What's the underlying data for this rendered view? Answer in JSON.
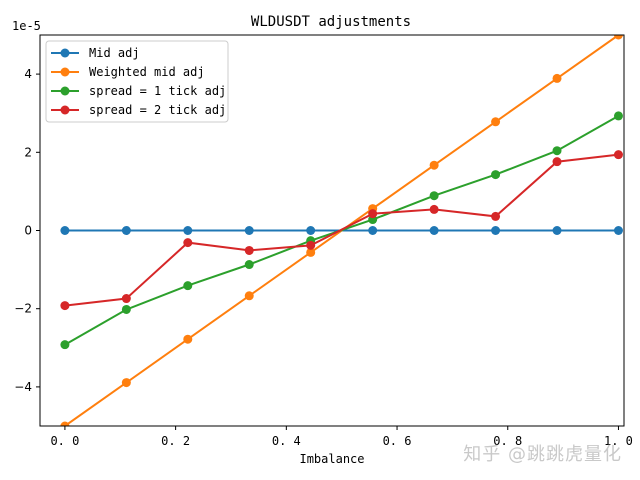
{
  "chart_data": {
    "type": "line",
    "title": "WLDUSDT adjustments",
    "xlabel": "Imbalance",
    "ylabel": "",
    "y_scale_label": "1e-5",
    "xlim": [
      -0.045,
      1.01
    ],
    "ylim": [
      -5.0,
      5.0
    ],
    "x_ticks": [
      "0.0",
      "0.2",
      "0.4",
      "0.6",
      "0.8",
      "1.0"
    ],
    "y_ticks": [
      "-4",
      "-2",
      "0",
      "2",
      "4"
    ],
    "grid": false,
    "legend_position": "upper left",
    "x": [
      0.0,
      0.111,
      0.222,
      0.333,
      0.444,
      0.556,
      0.667,
      0.778,
      0.889,
      1.0
    ],
    "series": [
      {
        "name": "Mid adj",
        "color": "#1f77b4",
        "values": [
          0,
          0,
          0,
          0,
          0,
          0,
          0,
          0,
          0,
          0
        ]
      },
      {
        "name": "Weighted mid adj",
        "color": "#ff7f0e",
        "values": [
          -5.0,
          -3.89,
          -2.78,
          -1.67,
          -0.56,
          0.56,
          1.67,
          2.78,
          3.89,
          5.0
        ]
      },
      {
        "name": "spread = 1 tick adj",
        "color": "#2ca02c",
        "values": [
          -2.92,
          -2.02,
          -1.41,
          -0.87,
          -0.26,
          0.28,
          0.89,
          1.43,
          2.04,
          2.93
        ]
      },
      {
        "name": "spread = 2 tick adj",
        "color": "#d62728",
        "values": [
          -1.92,
          -1.74,
          -0.31,
          -0.51,
          -0.38,
          0.43,
          0.54,
          0.36,
          1.76,
          1.94
        ]
      }
    ]
  },
  "watermark": "知乎 @跳跳虎量化"
}
